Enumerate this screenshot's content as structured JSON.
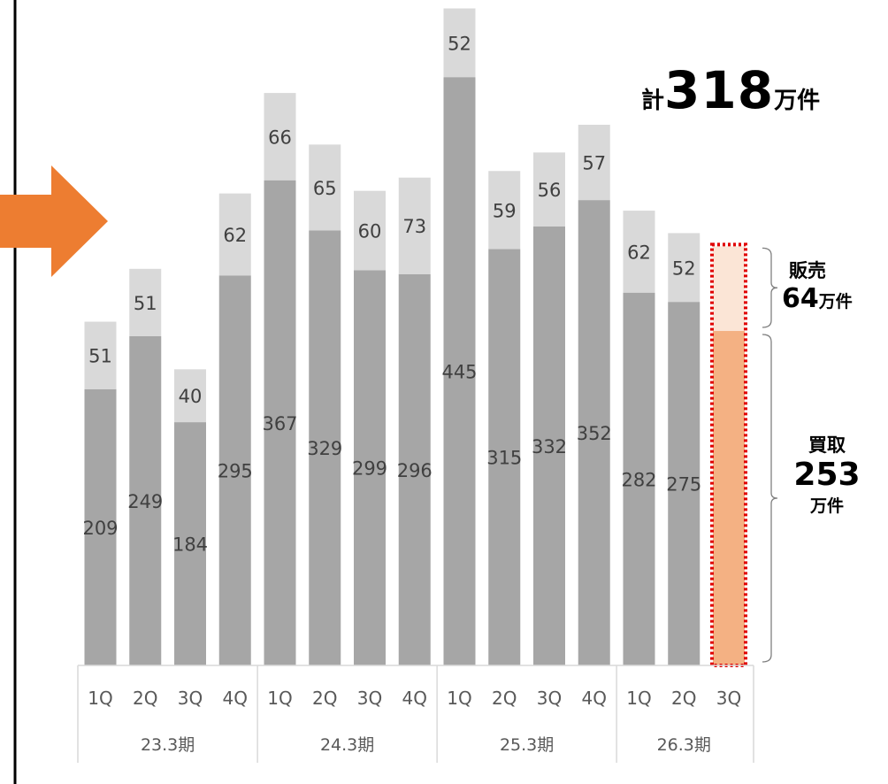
{
  "chart_data": {
    "type": "bar",
    "stacked": true,
    "quarters": [
      "1Q",
      "2Q",
      "3Q",
      "4Q",
      "1Q",
      "2Q",
      "3Q",
      "4Q",
      "1Q",
      "2Q",
      "3Q",
      "4Q",
      "1Q",
      "2Q",
      "3Q"
    ],
    "periods": [
      {
        "label": "23.3期",
        "count": 4
      },
      {
        "label": "24.3期",
        "count": 4
      },
      {
        "label": "25.3期",
        "count": 4
      },
      {
        "label": "26.3期",
        "count": 3
      }
    ],
    "series": [
      {
        "values": [
          209,
          249,
          184,
          295,
          367,
          329,
          299,
          296,
          445,
          315,
          332,
          352,
          282,
          275,
          253
        ],
        "color": "#a6a6a6",
        "highlight_color": "#f4b183"
      },
      {
        "values": [
          51,
          51,
          40,
          62,
          66,
          65,
          60,
          73,
          52,
          59,
          56,
          57,
          62,
          52,
          64
        ],
        "color": "#d9d9d9",
        "highlight_color": "#fbe5d6"
      }
    ],
    "highlight_index": 14,
    "show_value_labels_for_highlight": false,
    "ylim": [
      0,
      500
    ],
    "grid": false,
    "highlight_border_color": "#e00000",
    "arrow_color": "#ed7d31"
  },
  "annotations": {
    "total": {
      "prefix": "計",
      "value": "318",
      "unit": "万件"
    },
    "sell": {
      "name": "販売",
      "value": "64",
      "unit": "万件"
    },
    "buy": {
      "name": "買取",
      "value": "253",
      "unit": "万件"
    }
  }
}
